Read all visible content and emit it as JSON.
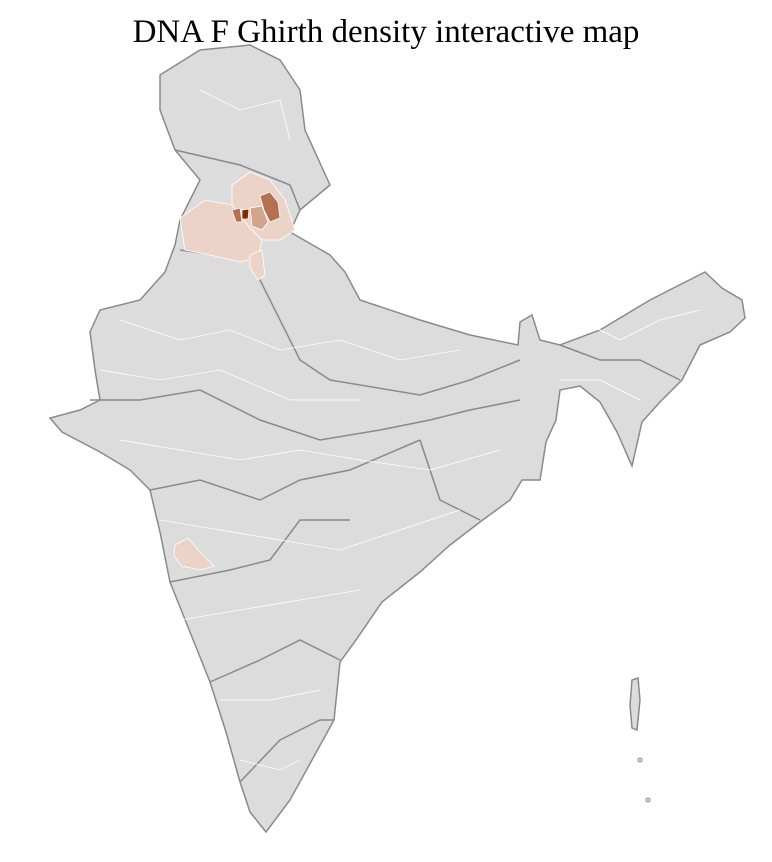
{
  "title": "DNA F Ghirth density interactive map",
  "map": {
    "region": "India districts",
    "colors": {
      "base": "#dcdcdc",
      "state_border": "#8a8a8a",
      "district_border": "#ffffff",
      "low": "#ecd3c7",
      "mid": "#d3a48d",
      "high": "#b5714f",
      "max": "#8b2500"
    },
    "highlighted_areas": [
      {
        "area": "Punjab",
        "level": "low"
      },
      {
        "area": "Himachal Pradesh",
        "level": "mid-high"
      },
      {
        "area": "Haryana",
        "level": "low"
      },
      {
        "area": "Maharashtra (Pune area)",
        "level": "low"
      }
    ]
  }
}
